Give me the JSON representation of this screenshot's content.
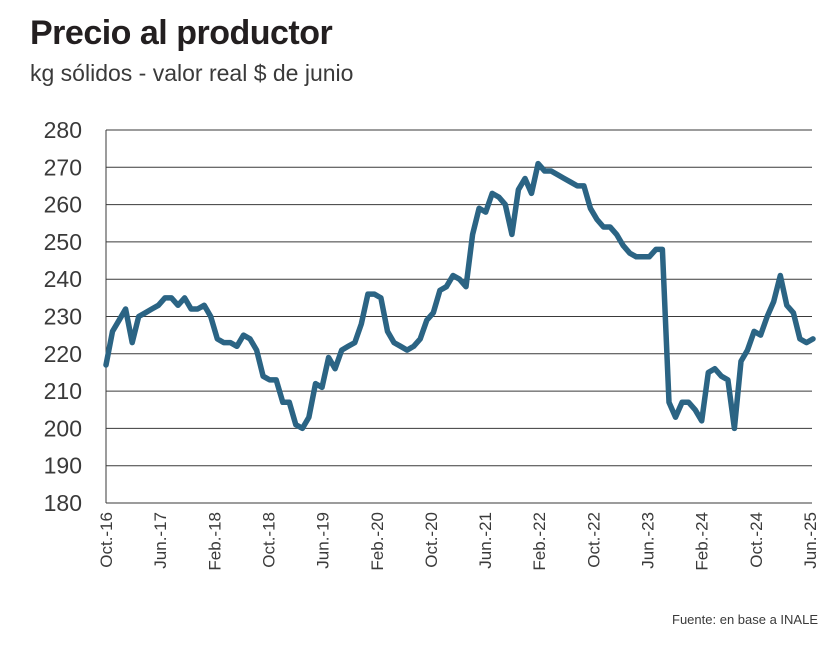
{
  "title": "Precio al productor",
  "subtitle": "kg sólidos - valor real $ de junio",
  "source": "Fuente: en base a INALE",
  "colors": {
    "line": "#2b6484",
    "grid": "#3a3a3a",
    "text": "#3a3a3a"
  },
  "chart_data": {
    "type": "line",
    "title": "Precio al productor",
    "subtitle": "kg sólidos - valor real $ de junio",
    "xlabel": "",
    "ylabel": "",
    "ylim": [
      180,
      280
    ],
    "yticks": [
      280,
      270,
      260,
      250,
      240,
      230,
      220,
      210,
      200,
      190,
      180
    ],
    "xticks": [
      "Oct.-16",
      "Jun.-17",
      "Feb.-18",
      "Oct.-18",
      "Jun.-19",
      "Feb.-20",
      "Oct.-20",
      "Jun.-21",
      "Feb.-22",
      "Oct.-22",
      "Jun.-23",
      "Feb.-24",
      "Oct.-24",
      "Jun.-25"
    ],
    "grid": "horizontal",
    "series": [
      {
        "values": [
          217,
          226,
          229,
          232,
          223,
          230,
          231,
          232,
          233,
          235,
          235,
          233,
          235,
          232,
          232,
          233,
          230,
          224,
          223,
          223,
          222,
          225,
          224,
          221,
          214,
          213,
          213,
          207,
          207,
          201,
          200,
          203,
          212,
          211,
          219,
          216,
          221,
          222,
          223,
          228,
          236,
          236,
          235,
          226,
          223,
          222,
          221,
          222,
          224,
          229,
          231,
          237,
          238,
          241,
          240,
          238,
          252,
          259,
          258,
          263,
          262,
          260,
          252,
          264,
          267,
          263,
          271,
          269,
          269,
          268,
          267,
          266,
          265,
          265,
          259,
          256,
          254,
          254,
          252,
          249,
          247,
          246,
          246,
          246,
          248,
          248,
          207,
          203,
          207,
          207,
          205,
          202,
          215,
          216,
          214,
          213,
          200,
          218,
          221,
          226,
          225,
          230,
          234,
          241,
          233,
          231,
          224,
          223,
          224
        ]
      }
    ]
  }
}
